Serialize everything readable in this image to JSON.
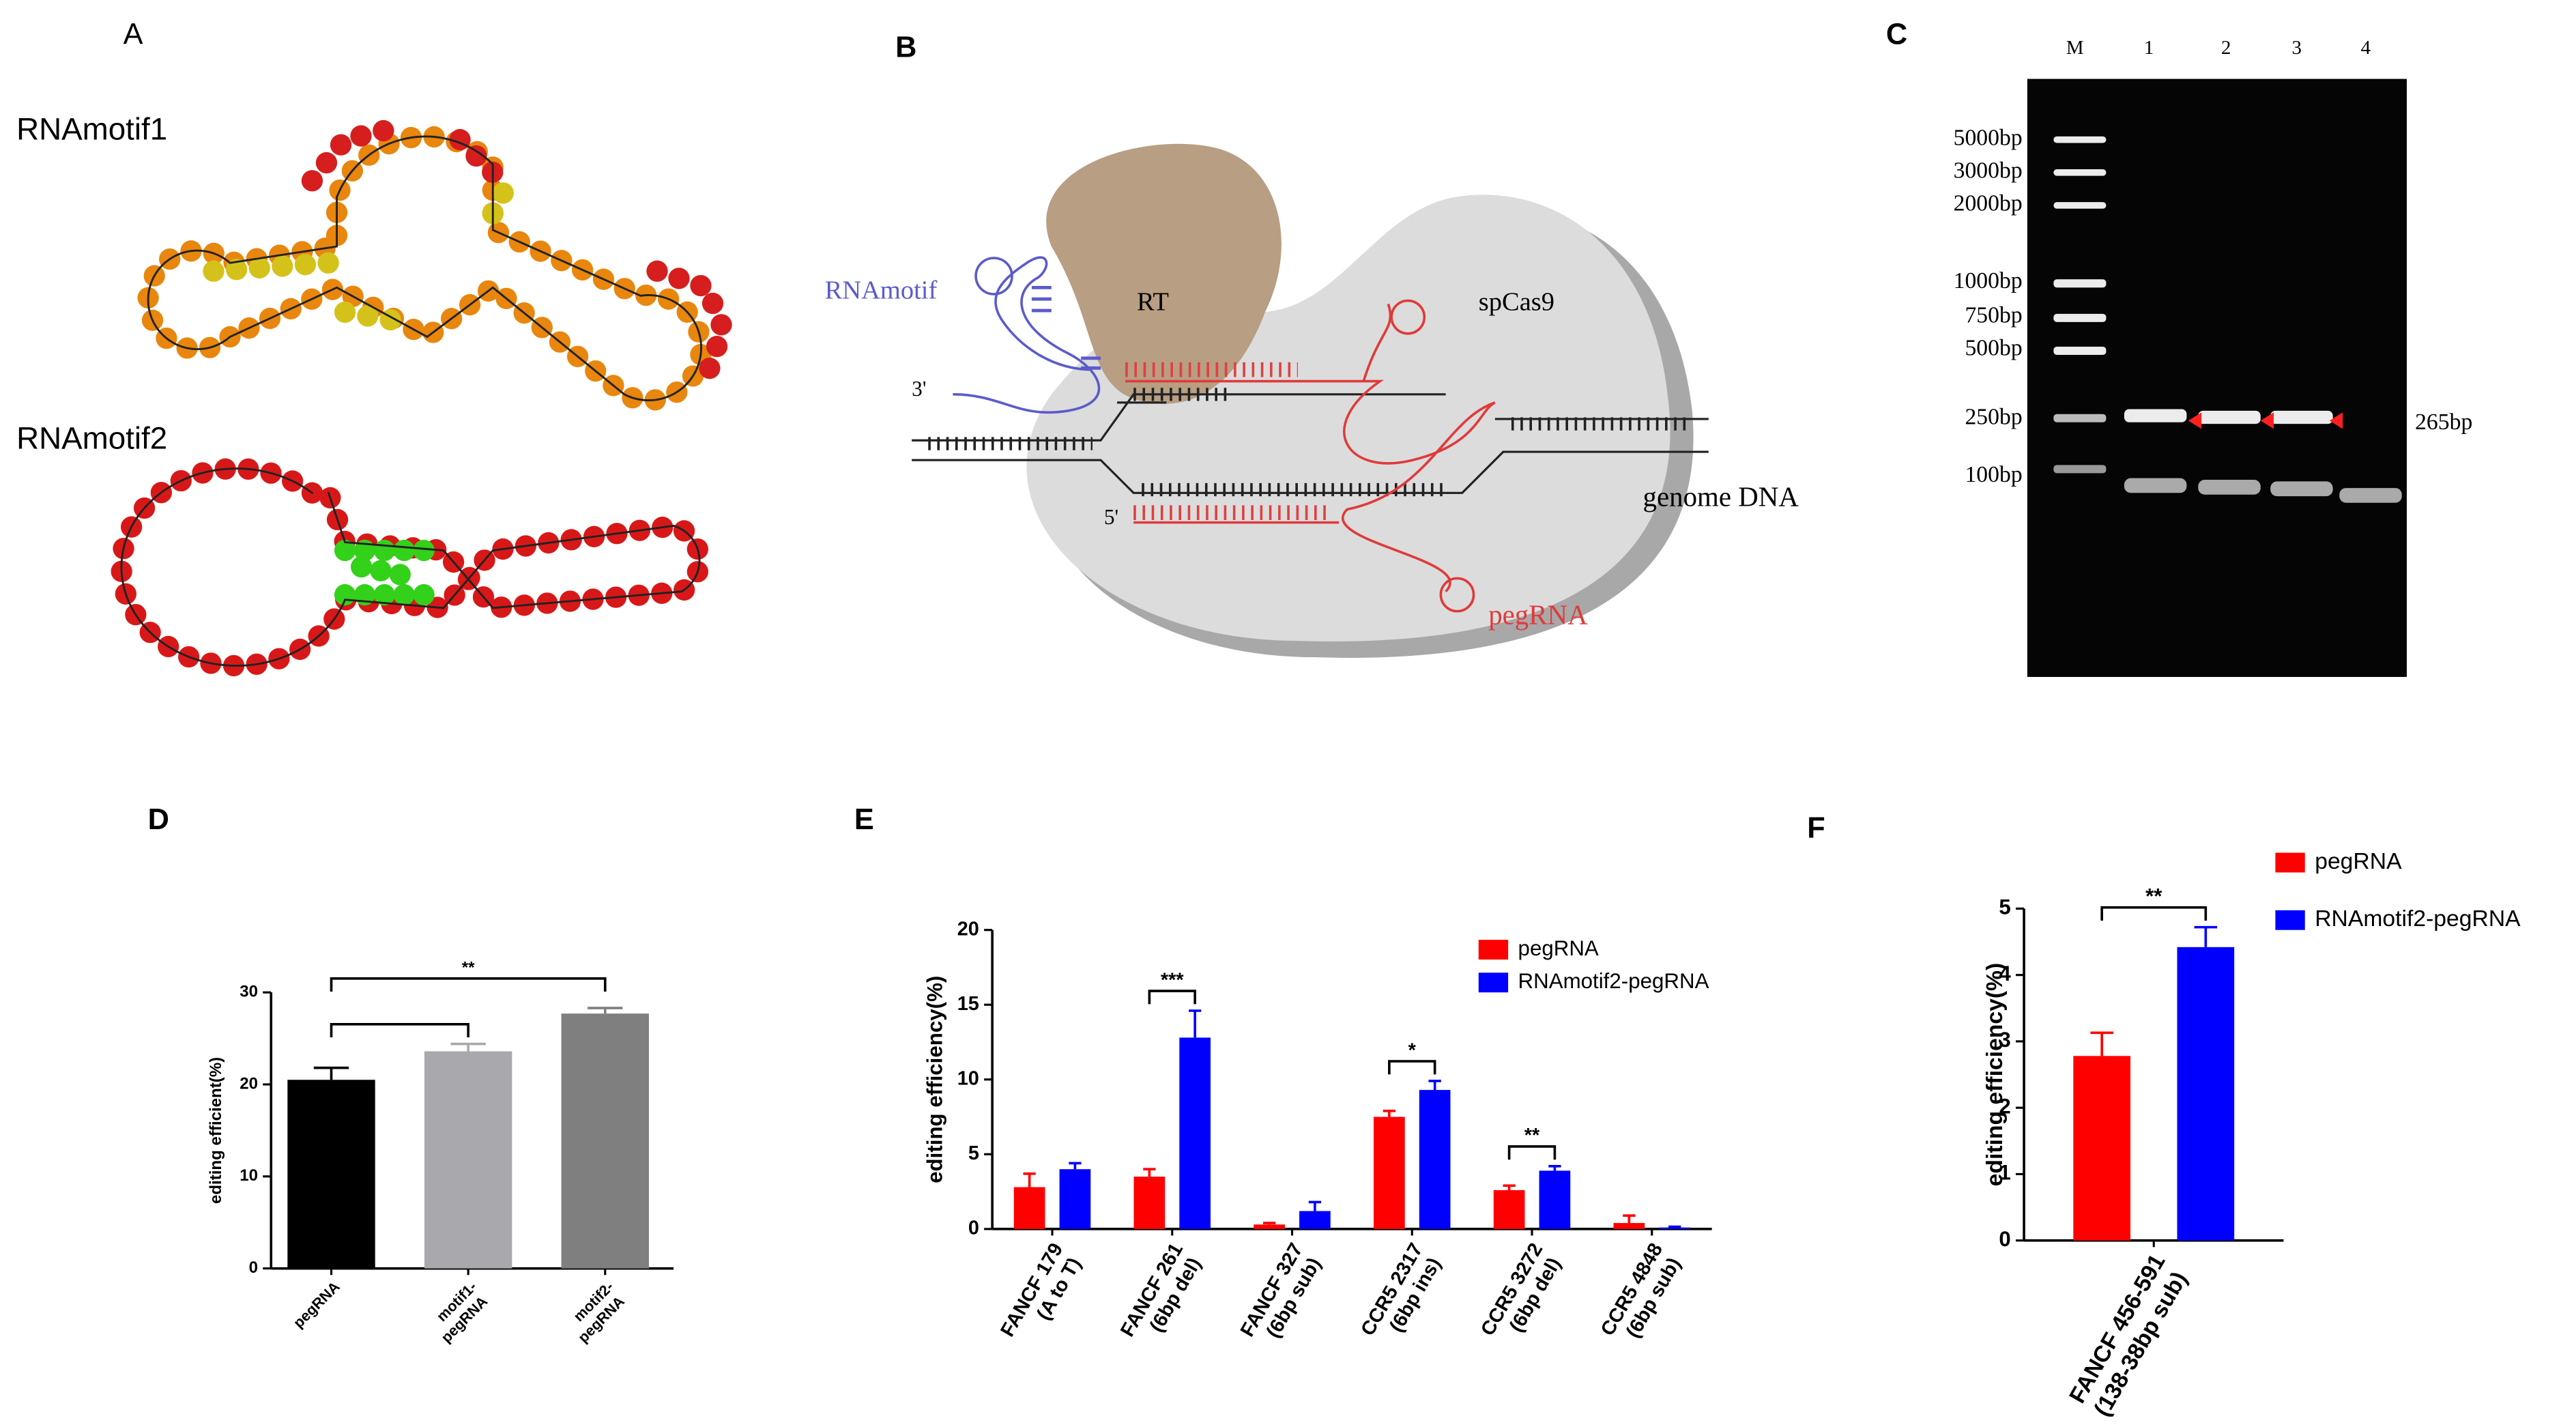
{
  "panel_a": {
    "title": "A",
    "labels": [
      "RNAmotif1",
      "RNAmotif2"
    ]
  },
  "panel_b": {
    "title": "B",
    "labels": {
      "motif": "RNAmotif",
      "rt": "RT",
      "cas": "spCas9",
      "three": "3'",
      "five": "5'",
      "dna": "genome DNA",
      "peg": "pegRNA"
    }
  },
  "panel_c": {
    "title": "C",
    "lanes": [
      "M",
      "1",
      "2",
      "3",
      "4"
    ],
    "ladder": [
      "5000bp",
      "3000bp",
      "2000bp",
      "1000bp",
      "750bp",
      "500bp",
      "250bp",
      "100bp"
    ],
    "band_label": "265bp"
  },
  "chart_data": [
    {
      "type": "bar",
      "title": "D",
      "ylabel": "editing efficient(%)",
      "categories": [
        [
          "pegRNA"
        ],
        [
          "motif1-",
          "pegRNA"
        ],
        [
          "motif2-",
          "pegRNA"
        ]
      ],
      "values": [
        20.5,
        23.6,
        27.7
      ],
      "errors": [
        1.3,
        0.8,
        0.6
      ],
      "colors": [
        "#000000",
        "#a9a9ad",
        "#7f7f7f"
      ],
      "ylim": [
        0,
        30
      ],
      "yticks": [
        0,
        10,
        20,
        30
      ],
      "significance": [
        {
          "from": 0,
          "to": 2,
          "label": "**"
        },
        {
          "from": 0,
          "to": 1
        }
      ]
    },
    {
      "type": "bar",
      "title": "E",
      "ylabel": "editing efficiency(%)",
      "categories": [
        [
          "FANCF 179",
          "(A to T)"
        ],
        [
          "FANCF 261",
          "(6bp del)"
        ],
        [
          "FANCF 327",
          "(6bp sub)"
        ],
        [
          "CCR5 2317",
          "(6bp ins)"
        ],
        [
          "CCR5 3272",
          "(6bp del)"
        ],
        [
          "CCR5 4848",
          "(6bp sub)"
        ]
      ],
      "series": [
        {
          "name": "pegRNA",
          "color": "#ff0000",
          "values": [
            2.8,
            3.5,
            0.3,
            7.5,
            2.6,
            0.4
          ],
          "errors": [
            0.9,
            0.5,
            0.1,
            0.4,
            0.3,
            0.5
          ]
        },
        {
          "name": "RNAmotif2-pegRNA",
          "color": "#0000ff",
          "values": [
            4.0,
            12.8,
            1.2,
            9.3,
            3.9,
            0.1
          ],
          "errors": [
            0.4,
            1.8,
            0.6,
            0.6,
            0.3,
            0.05
          ]
        }
      ],
      "ylim": [
        0,
        20
      ],
      "yticks": [
        0,
        5,
        10,
        15,
        20
      ],
      "significance": [
        {
          "category": 1,
          "label": "***"
        },
        {
          "category": 3,
          "label": "*"
        },
        {
          "category": 4,
          "label": "**"
        }
      ]
    },
    {
      "type": "bar",
      "title": "F",
      "ylabel": "editing efficiency(%)",
      "categories": [
        [
          "FANCF 456-591",
          "(138-38bp sub)"
        ]
      ],
      "series": [
        {
          "name": "pegRNA",
          "color": "#ff0000",
          "values": [
            2.78
          ],
          "errors": [
            0.35
          ]
        },
        {
          "name": "RNAmotif2-pegRNA",
          "color": "#0000ff",
          "values": [
            4.42
          ],
          "errors": [
            0.3
          ]
        }
      ],
      "ylim": [
        0,
        5
      ],
      "yticks": [
        0,
        1,
        2,
        3,
        4,
        5
      ],
      "significance": [
        {
          "category": 0,
          "label": "**"
        }
      ]
    }
  ]
}
